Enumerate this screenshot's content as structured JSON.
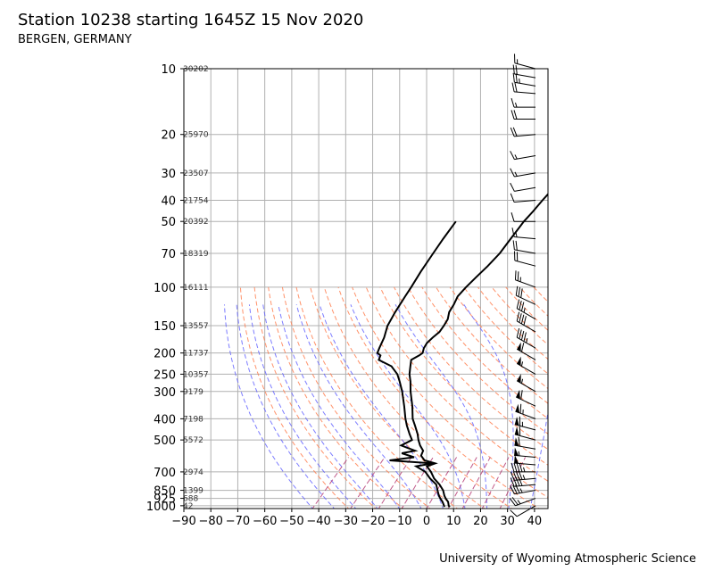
{
  "header": {
    "title": "Station 10238 starting 1645Z 15 Nov 2020",
    "subtitle": "BERGEN, GERMANY"
  },
  "footer": {
    "credit": "University of Wyoming Atmospheric Science"
  },
  "colors": {
    "temperature": "#000000",
    "dewpoint": "#000000",
    "dry_adiabat": "#ff7f50",
    "moist_adiabat": "#5b5bff",
    "mixing_ratio": "#b0306b",
    "grid": "#b0b0b0"
  },
  "chart_data": {
    "type": "skew-t log-p sounding",
    "title": "Station 10238 starting 1645Z 15 Nov 2020",
    "subtitle": "BERGEN, GERMANY",
    "xlabel": "",
    "ylabel": "",
    "x_ticks": [
      -90,
      -80,
      -70,
      -60,
      -50,
      -40,
      -30,
      -20,
      -10,
      0,
      10,
      20,
      30,
      40
    ],
    "xlim": [
      -90,
      45
    ],
    "y_ticks": [
      10,
      20,
      30,
      40,
      50,
      70,
      100,
      150,
      200,
      250,
      300,
      400,
      500,
      700,
      850,
      925,
      1000
    ],
    "ylim": [
      1030,
      10
    ],
    "y_scale": "log",
    "skew": 34,
    "grid": true,
    "height_labels": [
      {
        "p": 10,
        "h": "30202"
      },
      {
        "p": 20,
        "h": "25970"
      },
      {
        "p": 30,
        "h": "23507"
      },
      {
        "p": 40,
        "h": "21754"
      },
      {
        "p": 50,
        "h": "20392"
      },
      {
        "p": 70,
        "h": "18319"
      },
      {
        "p": 100,
        "h": "16111"
      },
      {
        "p": 150,
        "h": "13557"
      },
      {
        "p": 200,
        "h": "11737"
      },
      {
        "p": 250,
        "h": "10357"
      },
      {
        "p": 300,
        "h": "9179"
      },
      {
        "p": 400,
        "h": "7198"
      },
      {
        "p": 500,
        "h": "5572"
      },
      {
        "p": 700,
        "h": "2974"
      },
      {
        "p": 850,
        "h": "1399"
      },
      {
        "p": 925,
        "h": "688"
      },
      {
        "p": 1000,
        "h": "42"
      }
    ],
    "temperature": [
      {
        "p": 1013,
        "t": 9
      },
      {
        "p": 1000,
        "t": 8.2
      },
      {
        "p": 960,
        "t": 6.6
      },
      {
        "p": 925,
        "t": 4.4
      },
      {
        "p": 900,
        "t": 3
      },
      {
        "p": 850,
        "t": 0.6
      },
      {
        "p": 800,
        "t": -2.8
      },
      {
        "p": 750,
        "t": -7
      },
      {
        "p": 700,
        "t": -10.5
      },
      {
        "p": 660,
        "t": -14
      },
      {
        "p": 640,
        "t": -12
      },
      {
        "p": 620,
        "t": -17
      },
      {
        "p": 590,
        "t": -20
      },
      {
        "p": 560,
        "t": -21
      },
      {
        "p": 530,
        "t": -24
      },
      {
        "p": 500,
        "t": -26.6
      },
      {
        "p": 470,
        "t": -29
      },
      {
        "p": 430,
        "t": -33
      },
      {
        "p": 400,
        "t": -36.3
      },
      {
        "p": 350,
        "t": -41
      },
      {
        "p": 300,
        "t": -46.9
      },
      {
        "p": 270,
        "t": -50.5
      },
      {
        "p": 250,
        "t": -53.5
      },
      {
        "p": 230,
        "t": -56
      },
      {
        "p": 215,
        "t": -58
      },
      {
        "p": 205,
        "t": -56.6
      },
      {
        "p": 200,
        "t": -56.2
      },
      {
        "p": 190,
        "t": -57.5
      },
      {
        "p": 180,
        "t": -58.2
      },
      {
        "p": 170,
        "t": -58
      },
      {
        "p": 160,
        "t": -57.5
      },
      {
        "p": 150,
        "t": -58.1
      },
      {
        "p": 140,
        "t": -59
      },
      {
        "p": 130,
        "t": -61
      },
      {
        "p": 120,
        "t": -62
      },
      {
        "p": 110,
        "t": -63.5
      },
      {
        "p": 100,
        "t": -63.7
      },
      {
        "p": 90,
        "t": -63.5
      },
      {
        "p": 80,
        "t": -63.2
      },
      {
        "p": 70,
        "t": -63.3
      },
      {
        "p": 60,
        "t": -64.5
      },
      {
        "p": 50,
        "t": -65.8
      },
      {
        "p": 45,
        "t": -66
      },
      {
        "p": 40,
        "t": -66.5
      },
      {
        "p": 35,
        "t": -66.8
      },
      {
        "p": 30,
        "t": -68.2
      },
      {
        "p": 27,
        "t": -68
      },
      {
        "p": 25,
        "t": -67
      },
      {
        "p": 22,
        "t": -67.2
      },
      {
        "p": 20,
        "t": -67.8
      },
      {
        "p": 18,
        "t": -67
      },
      {
        "p": 16,
        "t": -64.8
      },
      {
        "p": 14,
        "t": -65
      },
      {
        "p": 13,
        "t": -63.5
      },
      {
        "p": 12,
        "t": -63.6
      },
      {
        "p": 11,
        "t": -64
      },
      {
        "p": 10,
        "t": -65.5
      }
    ],
    "dewpoint": [
      {
        "p": 1013,
        "t": 7
      },
      {
        "p": 1000,
        "t": 6.5
      },
      {
        "p": 960,
        "t": 4.5
      },
      {
        "p": 925,
        "t": 2.4
      },
      {
        "p": 900,
        "t": 1
      },
      {
        "p": 850,
        "t": -1.5
      },
      {
        "p": 800,
        "t": -4
      },
      {
        "p": 750,
        "t": -8.5
      },
      {
        "p": 700,
        "t": -12.6
      },
      {
        "p": 660,
        "t": -18
      },
      {
        "p": 640,
        "t": -13
      },
      {
        "p": 620,
        "t": -30
      },
      {
        "p": 600,
        "t": -22
      },
      {
        "p": 575,
        "t": -28
      },
      {
        "p": 560,
        "t": -24
      },
      {
        "p": 530,
        "t": -31
      },
      {
        "p": 500,
        "t": -29
      },
      {
        "p": 470,
        "t": -32
      },
      {
        "p": 430,
        "t": -36
      },
      {
        "p": 400,
        "t": -39
      },
      {
        "p": 350,
        "t": -44
      },
      {
        "p": 300,
        "t": -50
      },
      {
        "p": 270,
        "t": -54.5
      },
      {
        "p": 250,
        "t": -58
      },
      {
        "p": 230,
        "t": -63
      },
      {
        "p": 215,
        "t": -70
      },
      {
        "p": 205,
        "t": -71
      },
      {
        "p": 200,
        "t": -73
      },
      {
        "p": 190,
        "t": -74
      },
      {
        "p": 170,
        "t": -76
      },
      {
        "p": 150,
        "t": -79
      },
      {
        "p": 130,
        "t": -81
      },
      {
        "p": 110,
        "t": -83
      },
      {
        "p": 100,
        "t": -84
      },
      {
        "p": 85,
        "t": -86
      },
      {
        "p": 70,
        "t": -88
      },
      {
        "p": 60,
        "t": -89.5
      },
      {
        "p": 50,
        "t": -91
      }
    ],
    "wind_barbs": [
      {
        "p": 1000,
        "dir": 240,
        "kt": 10
      },
      {
        "p": 925,
        "dir": 250,
        "kt": 25
      },
      {
        "p": 850,
        "dir": 260,
        "kt": 35
      },
      {
        "p": 800,
        "dir": 265,
        "kt": 40
      },
      {
        "p": 750,
        "dir": 265,
        "kt": 45
      },
      {
        "p": 700,
        "dir": 270,
        "kt": 45
      },
      {
        "p": 650,
        "dir": 275,
        "kt": 50
      },
      {
        "p": 600,
        "dir": 275,
        "kt": 55
      },
      {
        "p": 550,
        "dir": 280,
        "kt": 60
      },
      {
        "p": 500,
        "dir": 285,
        "kt": 60
      },
      {
        "p": 450,
        "dir": 285,
        "kt": 65
      },
      {
        "p": 400,
        "dir": 290,
        "kt": 65
      },
      {
        "p": 350,
        "dir": 295,
        "kt": 60
      },
      {
        "p": 300,
        "dir": 300,
        "kt": 55
      },
      {
        "p": 250,
        "dir": 300,
        "kt": 55
      },
      {
        "p": 215,
        "dir": 300,
        "kt": 60
      },
      {
        "p": 190,
        "dir": 300,
        "kt": 45
      },
      {
        "p": 160,
        "dir": 300,
        "kt": 40
      },
      {
        "p": 140,
        "dir": 300,
        "kt": 35
      },
      {
        "p": 120,
        "dir": 295,
        "kt": 30
      },
      {
        "p": 100,
        "dir": 290,
        "kt": 25
      },
      {
        "p": 80,
        "dir": 285,
        "kt": 20
      },
      {
        "p": 70,
        "dir": 280,
        "kt": 20
      },
      {
        "p": 60,
        "dir": 275,
        "kt": 15
      },
      {
        "p": 50,
        "dir": 270,
        "kt": 10
      },
      {
        "p": 40,
        "dir": 265,
        "kt": 10
      },
      {
        "p": 35,
        "dir": 260,
        "kt": 10
      },
      {
        "p": 30,
        "dir": 260,
        "kt": 15
      },
      {
        "p": 25,
        "dir": 260,
        "kt": 15
      },
      {
        "p": 20,
        "dir": 265,
        "kt": 20
      },
      {
        "p": 17,
        "dir": 270,
        "kt": 20
      },
      {
        "p": 15,
        "dir": 270,
        "kt": 15
      },
      {
        "p": 13,
        "dir": 275,
        "kt": 20
      },
      {
        "p": 12,
        "dir": 280,
        "kt": 25
      },
      {
        "p": 11,
        "dir": 280,
        "kt": 20
      },
      {
        "p": 10,
        "dir": 285,
        "kt": 15
      }
    ]
  }
}
